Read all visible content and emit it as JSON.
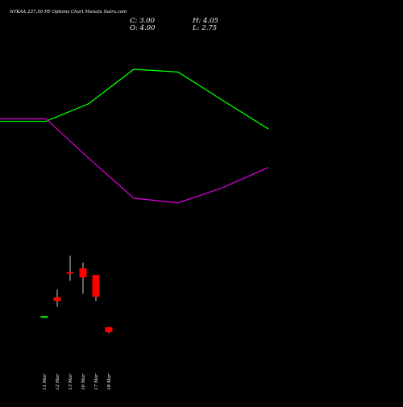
{
  "header": {
    "title": "NYKAA 237.50 PE Options Chart Munafa Sutra.com",
    "close_label": "C: 3.00",
    "high_label": "H: 4.05",
    "open_label": "O: 4.00",
    "low_label": "L: 2.75"
  },
  "colors": {
    "background": "#000000",
    "text": "#ffffff",
    "line_upper": "#00ff00",
    "line_lower": "#cc00cc",
    "candle_up": "#00ff00",
    "candle_down": "#ff0000",
    "wick": "#ffffff"
  },
  "chart_data": {
    "type": "candlestick",
    "categories": [
      "11 Mar",
      "12 Mar",
      "13 Mar",
      "16 Mar",
      "17 Mar",
      "18 Mar"
    ],
    "candles": [
      {
        "date": "11 Mar",
        "open": 6.3,
        "high": 6.3,
        "low": 6.0,
        "close": 6.0,
        "color": "green"
      },
      {
        "date": "12 Mar",
        "open": 10.2,
        "high": 11.8,
        "low": 8.2,
        "close": 9.4,
        "color": "red"
      },
      {
        "date": "13 Mar",
        "open": 15.4,
        "high": 18.8,
        "low": 13.6,
        "close": 15.1,
        "color": "red"
      },
      {
        "date": "16 Mar",
        "open": 16.2,
        "high": 17.4,
        "low": 10.9,
        "close": 14.3,
        "color": "red"
      },
      {
        "date": "17 Mar",
        "open": 14.8,
        "high": 14.8,
        "low": 9.4,
        "close": 10.3,
        "color": "red"
      },
      {
        "date": "18 Mar",
        "open": 4.0,
        "high": 4.05,
        "low": 2.75,
        "close": 3.0,
        "color": "red"
      }
    ],
    "ylim": [
      0,
      30
    ],
    "series": [
      {
        "color": "green",
        "x": [
          0,
          57,
          110,
          166,
          221,
          275,
          333
        ],
        "values": [
          61.3,
          61.3,
          67.0,
          78.2,
          77.3,
          68.3,
          58.8
        ]
      },
      {
        "color": "magenta",
        "x": [
          0,
          57,
          110,
          166,
          221,
          275,
          333
        ],
        "values": [
          62.1,
          62.1,
          49.3,
          36.3,
          34.8,
          39.6,
          46.3
        ]
      }
    ],
    "line_x_domain": [
      0,
      333
    ],
    "grid": false,
    "legend": "none"
  }
}
